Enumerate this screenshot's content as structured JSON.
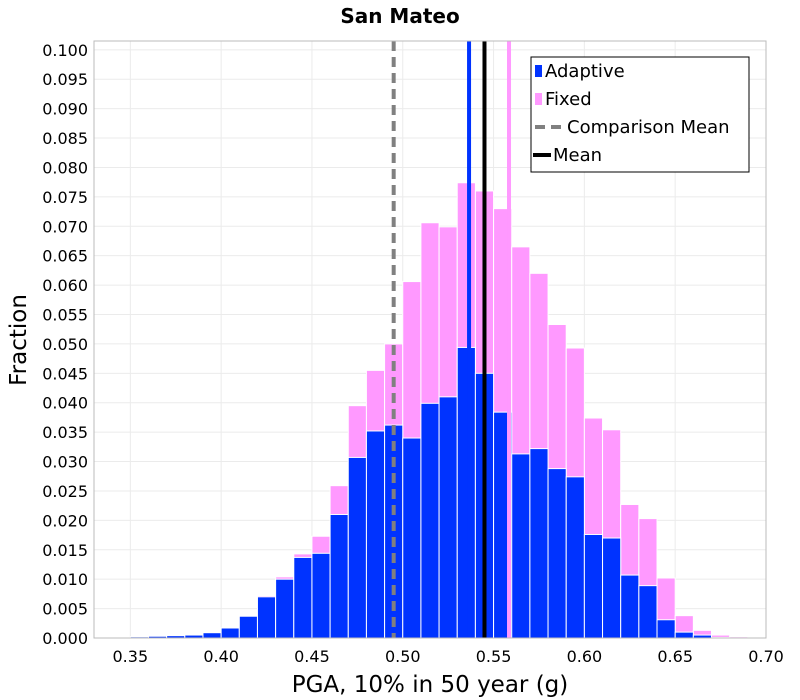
{
  "chart_data": {
    "type": "bar",
    "title": "San Mateo",
    "xlabel": "PGA, 10% in 50 year (g)",
    "ylabel": "Fraction",
    "xlim": [
      0.33,
      0.7
    ],
    "ylim": [
      0.0,
      0.1015
    ],
    "grid": true,
    "legend_position": "top-right",
    "bin_width": 0.01,
    "x_ticks": [
      "0.35",
      "0.40",
      "0.45",
      "0.50",
      "0.55",
      "0.60",
      "0.65",
      "0.70"
    ],
    "y_ticks": [
      "0.000",
      "0.005",
      "0.010",
      "0.015",
      "0.020",
      "0.025",
      "0.030",
      "0.035",
      "0.040",
      "0.045",
      "0.050",
      "0.055",
      "0.060",
      "0.065",
      "0.070",
      "0.075",
      "0.080",
      "0.085",
      "0.090",
      "0.095",
      "0.100"
    ],
    "x": [
      0.345,
      0.355,
      0.365,
      0.375,
      0.385,
      0.395,
      0.405,
      0.415,
      0.425,
      0.435,
      0.445,
      0.455,
      0.465,
      0.475,
      0.485,
      0.495,
      0.505,
      0.515,
      0.525,
      0.535,
      0.545,
      0.555,
      0.565,
      0.575,
      0.585,
      0.595,
      0.605,
      0.615,
      0.625,
      0.635,
      0.645,
      0.655,
      0.665,
      0.675,
      0.685
    ],
    "series": [
      {
        "name": "Fixed",
        "color": "#ff99ff",
        "values": [
          0.0001,
          0.0002,
          0.0003,
          0.0004,
          0.0005,
          0.0009,
          0.0017,
          0.0037,
          0.0072,
          0.0104,
          0.0143,
          0.0173,
          0.0259,
          0.0395,
          0.0455,
          0.05,
          0.0606,
          0.0706,
          0.0699,
          0.0774,
          0.076,
          0.073,
          0.0665,
          0.062,
          0.0533,
          0.0493,
          0.0374,
          0.0354,
          0.0227,
          0.0203,
          0.0102,
          0.0038,
          0.0013,
          0.0005,
          0.0002
        ]
      },
      {
        "name": "Adaptive",
        "color": "#0033ff",
        "values": [
          0.0001,
          0.0002,
          0.0003,
          0.0004,
          0.0005,
          0.0009,
          0.0017,
          0.0037,
          0.007,
          0.01,
          0.0137,
          0.0144,
          0.021,
          0.0307,
          0.0352,
          0.0362,
          0.034,
          0.0399,
          0.041,
          0.0494,
          0.045,
          0.0384,
          0.0313,
          0.0322,
          0.0288,
          0.0274,
          0.0176,
          0.017,
          0.0107,
          0.0089,
          0.0031,
          0.001,
          0.0005,
          0.0001,
          0.0
        ]
      }
    ],
    "vertical_lines": [
      {
        "name": "Comparison Mean",
        "x": 0.495,
        "color": "#808080",
        "style": "dashed"
      },
      {
        "name": "Mean",
        "x": 0.545,
        "color": "#000000",
        "style": "solid"
      },
      {
        "name": "Adaptive",
        "x": 0.5365,
        "color": "#0033ff",
        "style": "solid"
      },
      {
        "name": "Fixed",
        "x": 0.5585,
        "color": "#ff99ff",
        "style": "solid"
      }
    ],
    "legend": [
      {
        "label": "Adaptive",
        "kind": "box",
        "color": "#0033ff"
      },
      {
        "label": "Fixed",
        "kind": "box",
        "color": "#ff99ff"
      },
      {
        "label": "Comparison Mean",
        "kind": "dash",
        "color": "#808080"
      },
      {
        "label": "Mean",
        "kind": "line",
        "color": "#000000"
      }
    ]
  }
}
